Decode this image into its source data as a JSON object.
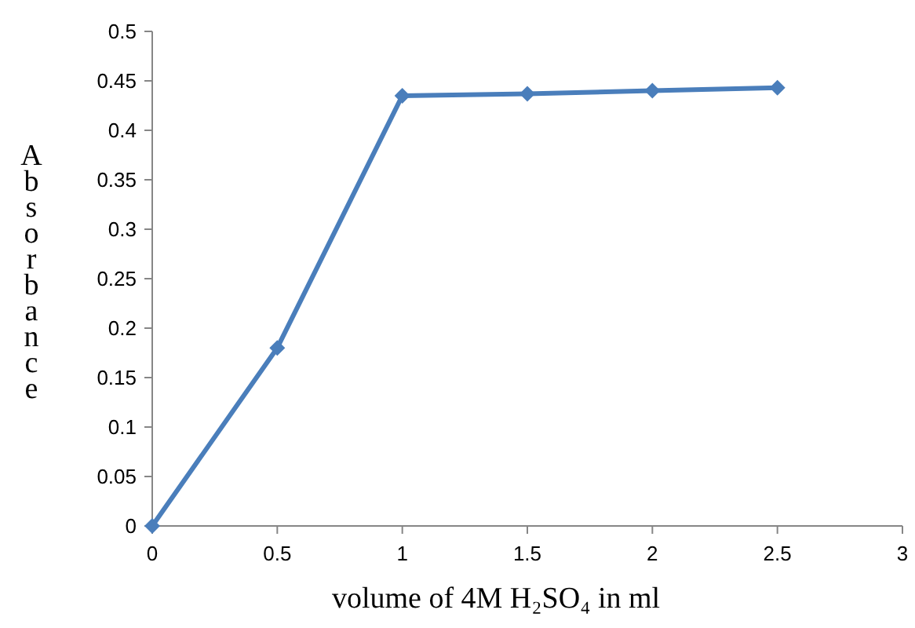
{
  "chart_data": {
    "type": "line",
    "xlabel": "volume of 4M H₂SO₄ in ml",
    "ylabel": "Absorbance",
    "x": [
      0,
      0.5,
      1,
      1.5,
      2,
      2.5
    ],
    "series": [
      {
        "color": "#4a7ebb",
        "values": [
          0,
          0.18,
          0.435,
          0.437,
          0.44,
          0.443
        ]
      }
    ],
    "xlim": [
      0,
      3
    ],
    "xticks": [
      0,
      0.5,
      1,
      1.5,
      2,
      2.5,
      3
    ],
    "ylim": [
      0,
      0.5
    ],
    "yticks": [
      0,
      0.05,
      0.1,
      0.15,
      0.2,
      0.25,
      0.3,
      0.35,
      0.4,
      0.45,
      0.5
    ],
    "grid": false,
    "marker": "diamond",
    "line_style": "solid"
  }
}
